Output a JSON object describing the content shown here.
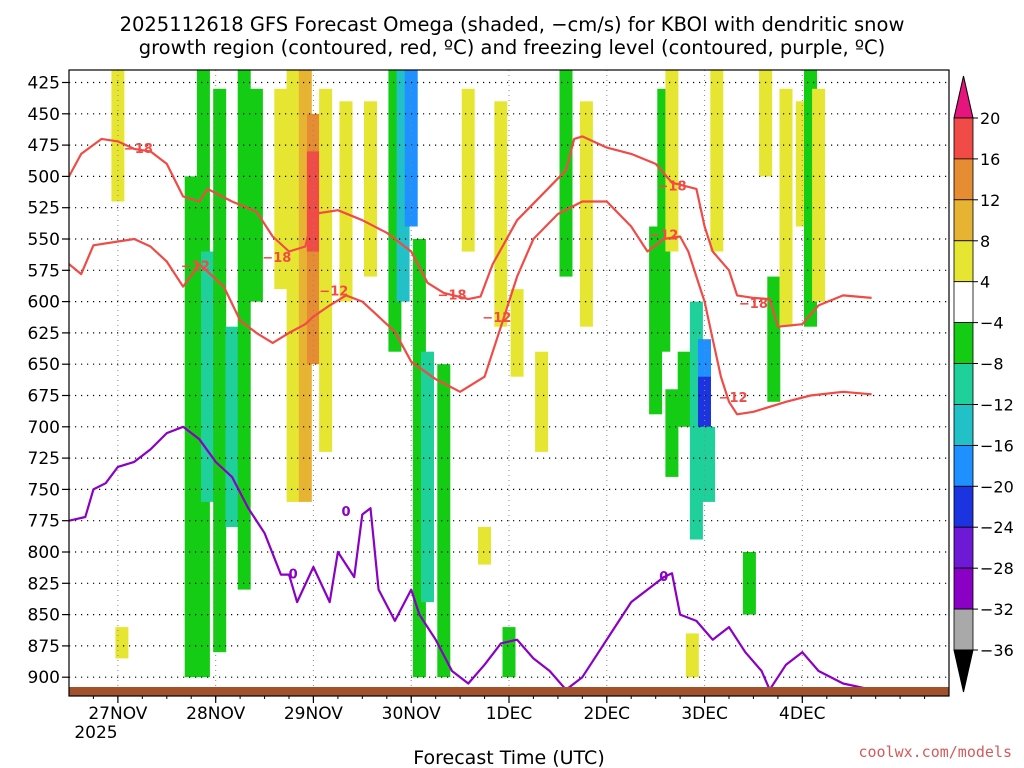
{
  "title_line1": "2025112618 GFS Forecast Omega (shaded, −cm/s) for KBOI with dendritic snow",
  "title_line2": "growth region (contoured, red, ºC) and freezing level (contoured, purple, ºC)",
  "xlabel": "Forecast Time (UTC)",
  "credit": "coolwx.com/models",
  "year_label": "2025",
  "chart_data": {
    "type": "heatmap",
    "title": "2025112618 GFS Forecast Omega (shaded, −cm/s) for KBOI with dendritic snow growth region (contoured, red, ºC) and freezing level (contoured, purple, ºC)",
    "xlabel": "Forecast Time (UTC)",
    "ylabel": "",
    "x_unit": "hours since 2025-11-26 18 UTC",
    "xlim": [
      -6,
      210
    ],
    "ylim": [
      915,
      415
    ],
    "y_log": false,
    "grid": true,
    "x_ticks": [
      {
        "label": "27NOV",
        "hour": 6
      },
      {
        "label": "28NOV",
        "hour": 30
      },
      {
        "label": "29NOV",
        "hour": 54
      },
      {
        "label": "30NOV",
        "hour": 78
      },
      {
        "label": "1DEC",
        "hour": 102
      },
      {
        "label": "2DEC",
        "hour": 126
      },
      {
        "label": "3DEC",
        "hour": 150
      },
      {
        "label": "4DEC",
        "hour": 174
      }
    ],
    "y_ticks": [
      425,
      450,
      475,
      500,
      525,
      550,
      575,
      600,
      625,
      650,
      675,
      700,
      725,
      750,
      775,
      800,
      825,
      850,
      875,
      900
    ],
    "colorbar": {
      "labels": [
        "20",
        "16",
        "12",
        "8",
        "4",
        "−4",
        "−8",
        "−12",
        "−16",
        "−20",
        "−24",
        "−28",
        "−32",
        "−36"
      ],
      "bins": [
        {
          "range": "<-36",
          "color": "#000000"
        },
        {
          "range": "-36..-32",
          "color": "#a9a9a9"
        },
        {
          "range": "-32..-28",
          "color": "#8a00c4"
        },
        {
          "range": "-28..-24",
          "color": "#6e19d6"
        },
        {
          "range": "-24..-20",
          "color": "#1c34e0"
        },
        {
          "range": "-20..-16",
          "color": "#1e90ff"
        },
        {
          "range": "-16..-12",
          "color": "#22c1c8"
        },
        {
          "range": "-12..-8",
          "color": "#1fd09a"
        },
        {
          "range": "-8..-4",
          "color": "#14cc14"
        },
        {
          "range": "-4..4",
          "color": "#ffffff"
        },
        {
          "range": "4..8",
          "color": "#e6e632"
        },
        {
          "range": "8..12",
          "color": "#e6b432"
        },
        {
          "range": "12..16",
          "color": "#e68c32"
        },
        {
          "range": "16..20",
          "color": "#f04b46"
        },
        {
          "range": ">20",
          "color": "#e6147d"
        }
      ]
    },
    "omega_regions": [
      {
        "hour": 6,
        "p1": 415,
        "p2": 520,
        "value": 6
      },
      {
        "hour": 7,
        "p1": 860,
        "p2": 885,
        "value": 6
      },
      {
        "hour": 24,
        "p1": 500,
        "p2": 900,
        "value": -6
      },
      {
        "hour": 27,
        "p1": 415,
        "p2": 900,
        "value": -6
      },
      {
        "hour": 28,
        "p1": 560,
        "p2": 760,
        "value": -10
      },
      {
        "hour": 31,
        "p1": 430,
        "p2": 880,
        "value": -6
      },
      {
        "hour": 34,
        "p1": 620,
        "p2": 780,
        "value": -10
      },
      {
        "hour": 37,
        "p1": 415,
        "p2": 830,
        "value": -6
      },
      {
        "hour": 40,
        "p1": 430,
        "p2": 600,
        "value": -6
      },
      {
        "hour": 46,
        "p1": 430,
        "p2": 590,
        "value": 6
      },
      {
        "hour": 49,
        "p1": 415,
        "p2": 760,
        "value": 6
      },
      {
        "hour": 52,
        "p1": 415,
        "p2": 760,
        "value": 10
      },
      {
        "hour": 54,
        "p1": 450,
        "p2": 650,
        "value": 14
      },
      {
        "hour": 54,
        "p1": 480,
        "p2": 560,
        "value": 18
      },
      {
        "hour": 57,
        "p1": 430,
        "p2": 720,
        "value": 6
      },
      {
        "hour": 62,
        "p1": 440,
        "p2": 600,
        "value": 6
      },
      {
        "hour": 68,
        "p1": 440,
        "p2": 580,
        "value": 6
      },
      {
        "hour": 74,
        "p1": 415,
        "p2": 640,
        "value": -6
      },
      {
        "hour": 76,
        "p1": 415,
        "p2": 600,
        "value": -14
      },
      {
        "hour": 78,
        "p1": 415,
        "p2": 540,
        "value": -18
      },
      {
        "hour": 80,
        "p1": 550,
        "p2": 900,
        "value": -6
      },
      {
        "hour": 82,
        "p1": 640,
        "p2": 840,
        "value": -10
      },
      {
        "hour": 86,
        "p1": 650,
        "p2": 900,
        "value": -6
      },
      {
        "hour": 92,
        "p1": 430,
        "p2": 560,
        "value": 6
      },
      {
        "hour": 96,
        "p1": 780,
        "p2": 810,
        "value": 6
      },
      {
        "hour": 100,
        "p1": 440,
        "p2": 620,
        "value": 6
      },
      {
        "hour": 102,
        "p1": 860,
        "p2": 900,
        "value": -6
      },
      {
        "hour": 104,
        "p1": 590,
        "p2": 660,
        "value": 6
      },
      {
        "hour": 110,
        "p1": 640,
        "p2": 720,
        "value": 6
      },
      {
        "hour": 116,
        "p1": 415,
        "p2": 580,
        "value": -6
      },
      {
        "hour": 121,
        "p1": 440,
        "p2": 620,
        "value": 6
      },
      {
        "hour": 138,
        "p1": 540,
        "p2": 690,
        "value": -6
      },
      {
        "hour": 140,
        "p1": 430,
        "p2": 640,
        "value": -6
      },
      {
        "hour": 142,
        "p1": 415,
        "p2": 560,
        "value": 6
      },
      {
        "hour": 142,
        "p1": 670,
        "p2": 740,
        "value": -6
      },
      {
        "hour": 145,
        "p1": 640,
        "p2": 700,
        "value": -6
      },
      {
        "hour": 147,
        "p1": 865,
        "p2": 900,
        "value": 6
      },
      {
        "hour": 148,
        "p1": 600,
        "p2": 790,
        "value": -10
      },
      {
        "hour": 150,
        "p1": 630,
        "p2": 700,
        "value": -18
      },
      {
        "hour": 150,
        "p1": 660,
        "p2": 700,
        "value": -24
      },
      {
        "hour": 151,
        "p1": 700,
        "p2": 760,
        "value": -10
      },
      {
        "hour": 153,
        "p1": 415,
        "p2": 560,
        "value": 6
      },
      {
        "hour": 161,
        "p1": 800,
        "p2": 850,
        "value": -6
      },
      {
        "hour": 165,
        "p1": 415,
        "p2": 500,
        "value": 6
      },
      {
        "hour": 167,
        "p1": 580,
        "p2": 680,
        "value": -6
      },
      {
        "hour": 170,
        "p1": 430,
        "p2": 620,
        "value": 6
      },
      {
        "hour": 174,
        "p1": 440,
        "p2": 540,
        "value": 6
      },
      {
        "hour": 176,
        "p1": 415,
        "p2": 620,
        "value": -6
      },
      {
        "hour": 178,
        "p1": 430,
        "p2": 600,
        "value": 6
      }
    ],
    "series": [
      {
        "name": "-18",
        "color": "#f04b46",
        "label_points": [
          {
            "hour": 11,
            "p": 478
          },
          {
            "hour": 45,
            "p": 565
          },
          {
            "hour": 88,
            "p": 595
          },
          {
            "hour": 142,
            "p": 508
          },
          {
            "hour": 162,
            "p": 602
          }
        ],
        "points": [
          [
            -6,
            500
          ],
          [
            -3,
            482
          ],
          [
            2,
            470
          ],
          [
            6,
            472
          ],
          [
            10,
            478
          ],
          [
            14,
            480
          ],
          [
            18,
            490
          ],
          [
            22,
            516
          ],
          [
            26,
            520
          ],
          [
            28,
            510
          ],
          [
            34,
            520
          ],
          [
            40,
            528
          ],
          [
            44,
            548
          ],
          [
            48,
            560
          ],
          [
            52,
            556
          ],
          [
            54,
            530
          ],
          [
            60,
            527
          ],
          [
            66,
            535
          ],
          [
            72,
            545
          ],
          [
            78,
            560
          ],
          [
            82,
            585
          ],
          [
            86,
            593
          ],
          [
            92,
            598
          ],
          [
            95,
            596
          ],
          [
            98,
            570
          ],
          [
            104,
            535
          ],
          [
            110,
            515
          ],
          [
            116,
            495
          ],
          [
            118,
            470
          ],
          [
            120,
            468
          ],
          [
            126,
            477
          ],
          [
            132,
            482
          ],
          [
            138,
            490
          ],
          [
            142,
            505
          ],
          [
            148,
            510
          ],
          [
            150,
            540
          ],
          [
            152,
            560
          ],
          [
            156,
            575
          ],
          [
            158,
            595
          ],
          [
            162,
            597
          ],
          [
            166,
            598
          ],
          [
            168,
            620
          ],
          [
            174,
            618
          ],
          [
            178,
            603
          ],
          [
            184,
            595
          ],
          [
            191,
            597
          ]
        ]
      },
      {
        "name": "-12",
        "color": "#f04b46",
        "label_points": [
          {
            "hour": 25,
            "p": 572
          },
          {
            "hour": 59,
            "p": 592
          },
          {
            "hour": 99,
            "p": 613
          },
          {
            "hour": 140,
            "p": 547
          },
          {
            "hour": 157,
            "p": 677
          }
        ],
        "points": [
          [
            -6,
            570
          ],
          [
            -3,
            578
          ],
          [
            0,
            555
          ],
          [
            6,
            552
          ],
          [
            10,
            550
          ],
          [
            14,
            556
          ],
          [
            18,
            568
          ],
          [
            22,
            588
          ],
          [
            26,
            570
          ],
          [
            32,
            588
          ],
          [
            36,
            615
          ],
          [
            40,
            625
          ],
          [
            44,
            633
          ],
          [
            48,
            625
          ],
          [
            52,
            618
          ],
          [
            54,
            612
          ],
          [
            58,
            603
          ],
          [
            62,
            595
          ],
          [
            66,
            600
          ],
          [
            70,
            612
          ],
          [
            74,
            624
          ],
          [
            78,
            648
          ],
          [
            84,
            662
          ],
          [
            90,
            672
          ],
          [
            96,
            660
          ],
          [
            100,
            620
          ],
          [
            104,
            580
          ],
          [
            108,
            550
          ],
          [
            114,
            530
          ],
          [
            120,
            520
          ],
          [
            126,
            520
          ],
          [
            132,
            540
          ],
          [
            136,
            560
          ],
          [
            140,
            550
          ],
          [
            144,
            548
          ],
          [
            146,
            560
          ],
          [
            148,
            580
          ],
          [
            150,
            600
          ],
          [
            152,
            630
          ],
          [
            154,
            660
          ],
          [
            156,
            680
          ],
          [
            158,
            690
          ],
          [
            162,
            688
          ],
          [
            170,
            680
          ],
          [
            176,
            675
          ],
          [
            184,
            672
          ],
          [
            191,
            674
          ]
        ]
      },
      {
        "name": "0",
        "color": "#8a00c4",
        "label_points": [
          {
            "hour": 49,
            "p": 818
          },
          {
            "hour": 62,
            "p": 768
          },
          {
            "hour": 140,
            "p": 820
          }
        ],
        "points": [
          [
            -6,
            775
          ],
          [
            -2,
            772
          ],
          [
            0,
            750
          ],
          [
            3,
            745
          ],
          [
            6,
            732
          ],
          [
            10,
            728
          ],
          [
            14,
            718
          ],
          [
            18,
            705
          ],
          [
            22,
            700
          ],
          [
            26,
            710
          ],
          [
            30,
            728
          ],
          [
            34,
            740
          ],
          [
            38,
            765
          ],
          [
            42,
            785
          ],
          [
            46,
            818
          ],
          [
            48,
            818
          ],
          [
            50,
            840
          ],
          [
            54,
            812
          ],
          [
            58,
            840
          ],
          [
            60,
            800
          ],
          [
            64,
            820
          ],
          [
            66,
            770
          ],
          [
            68,
            765
          ],
          [
            70,
            830
          ],
          [
            74,
            855
          ],
          [
            78,
            830
          ],
          [
            80,
            850
          ],
          [
            84,
            870
          ],
          [
            88,
            895
          ],
          [
            92,
            905
          ],
          [
            96,
            890
          ],
          [
            100,
            873
          ],
          [
            104,
            870
          ],
          [
            108,
            885
          ],
          [
            112,
            895
          ],
          [
            116,
            910
          ],
          [
            120,
            900
          ],
          [
            124,
            880
          ],
          [
            128,
            860
          ],
          [
            132,
            840
          ],
          [
            136,
            830
          ],
          [
            140,
            820
          ],
          [
            142,
            817
          ],
          [
            144,
            850
          ],
          [
            148,
            855
          ],
          [
            152,
            870
          ],
          [
            156,
            860
          ],
          [
            160,
            880
          ],
          [
            164,
            895
          ],
          [
            166,
            910
          ],
          [
            170,
            890
          ],
          [
            174,
            880
          ],
          [
            178,
            895
          ],
          [
            184,
            905
          ],
          [
            191,
            910
          ]
        ]
      }
    ]
  }
}
